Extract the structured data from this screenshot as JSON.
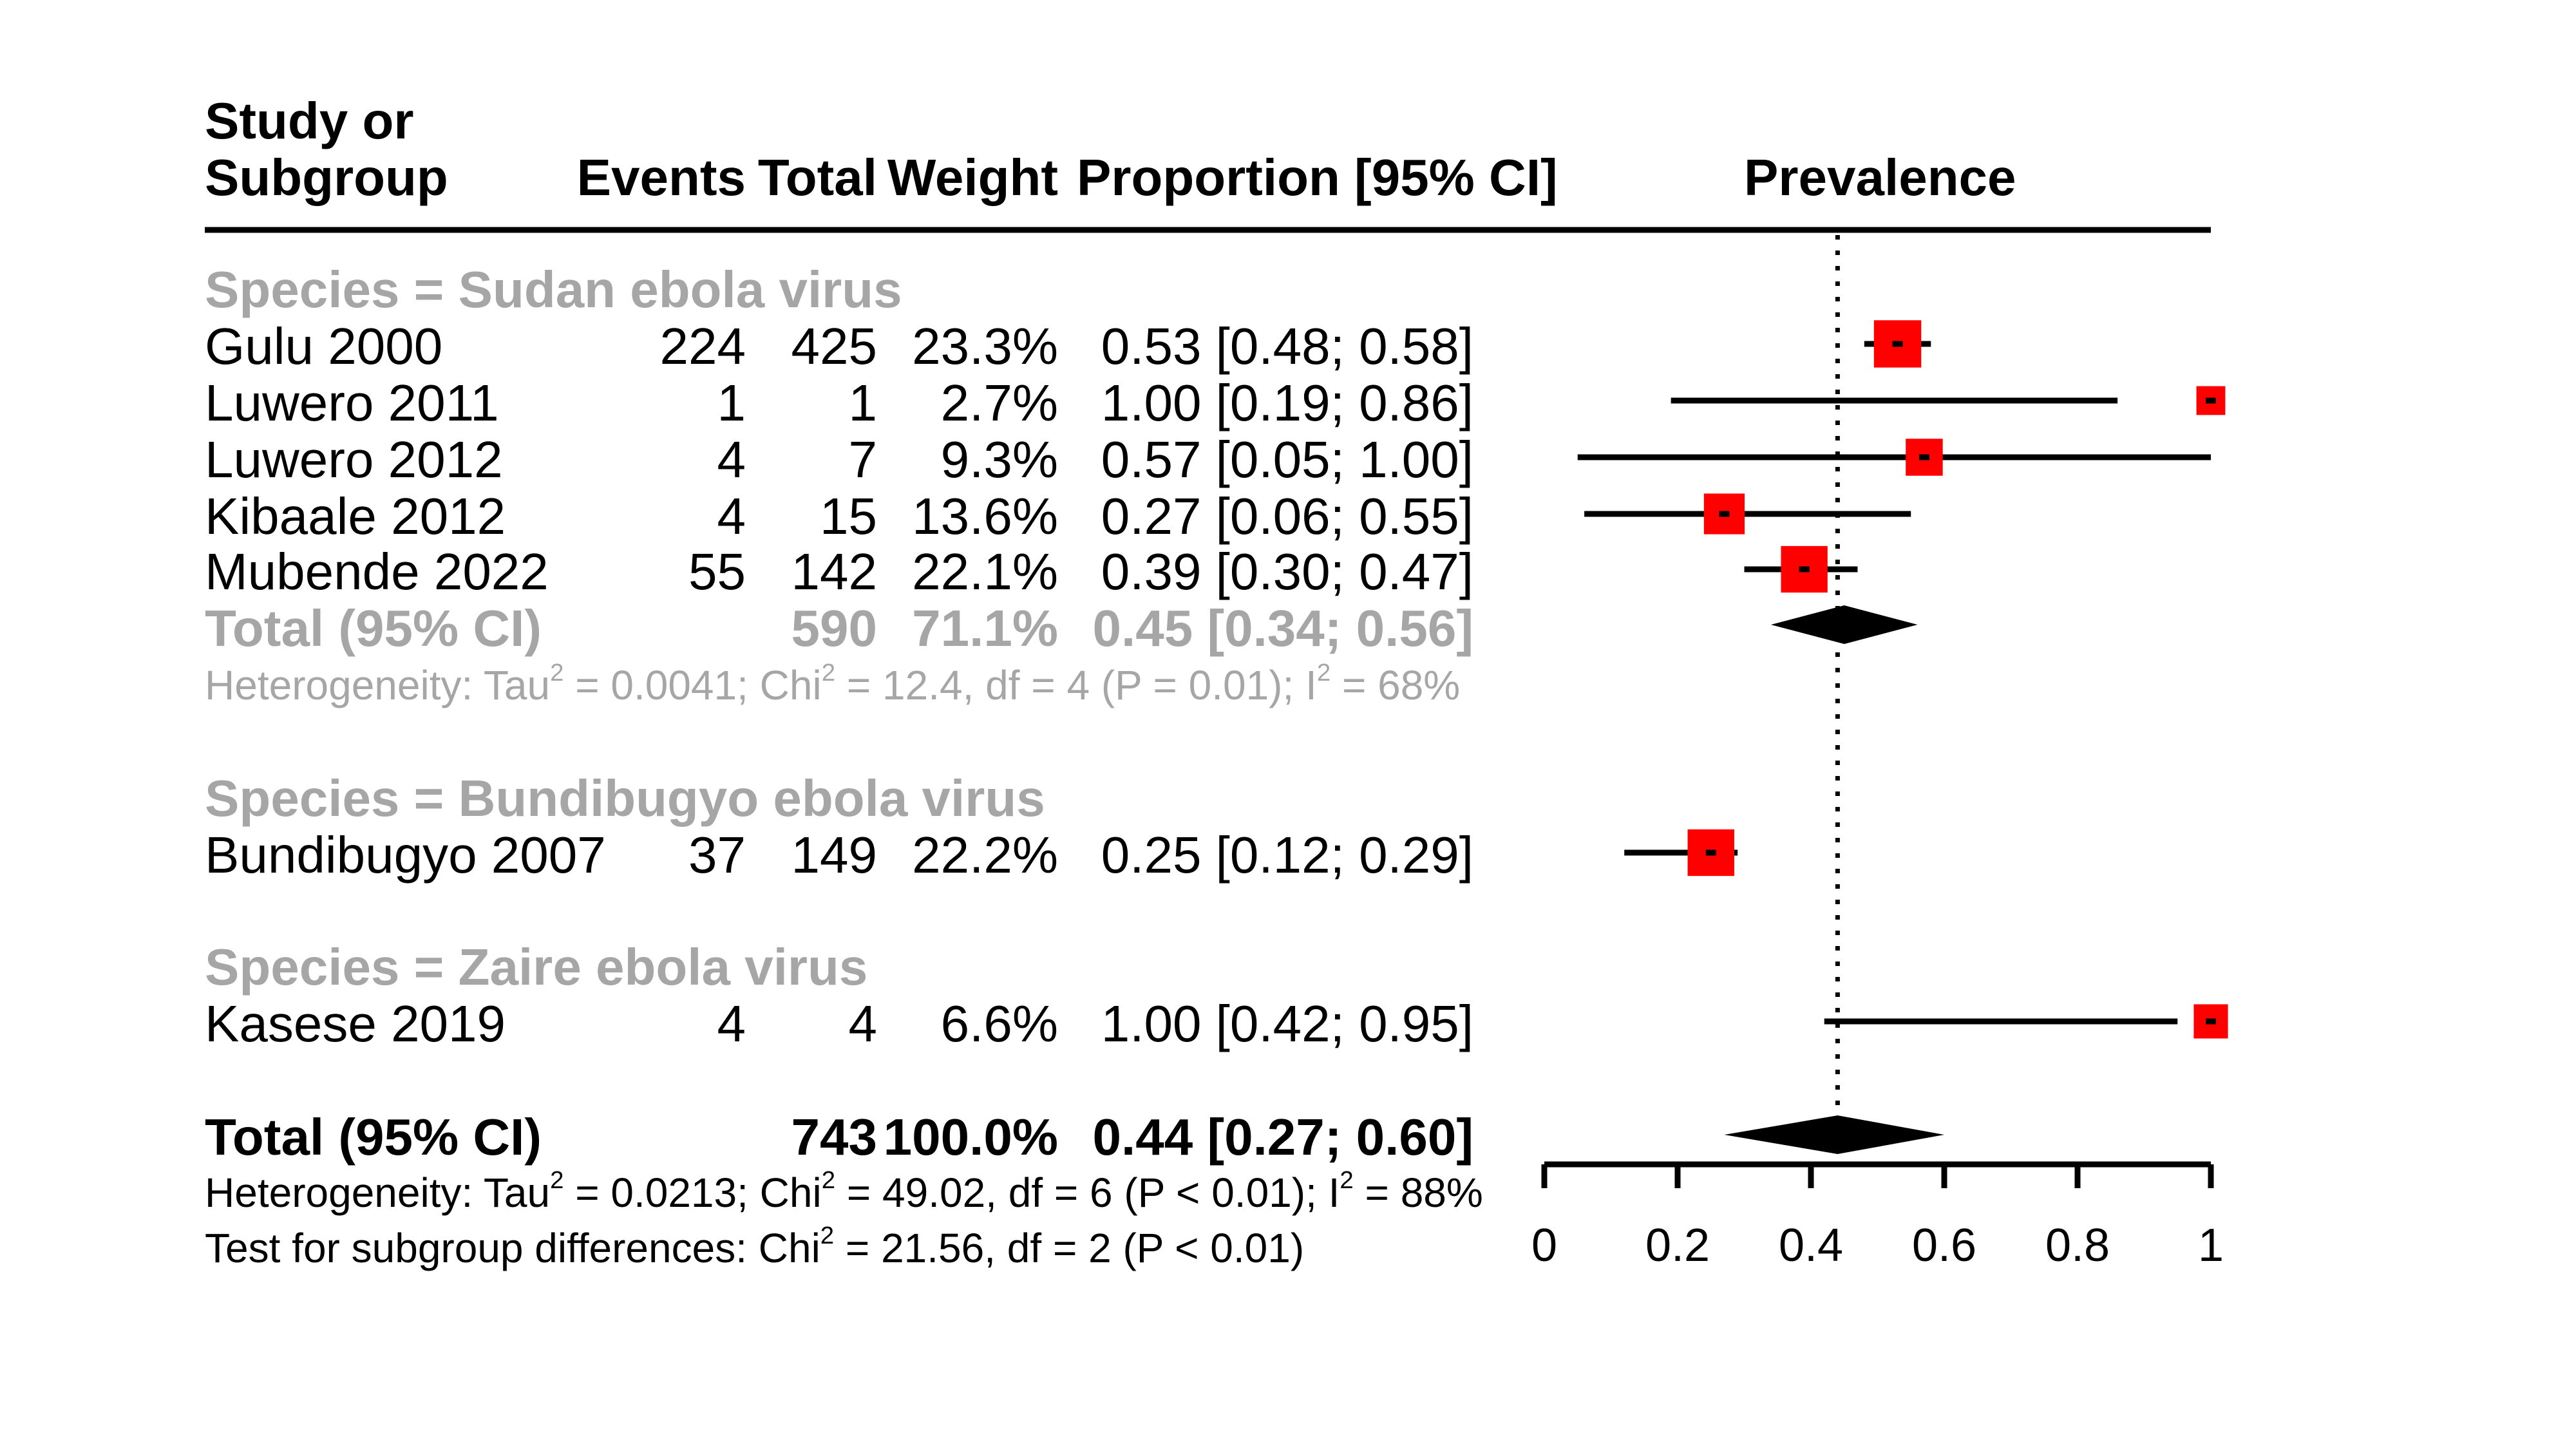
{
  "header": {
    "study_line1": "Study or",
    "study_line2": "Subgroup",
    "events": "Events",
    "total": "Total",
    "weight": "Weight",
    "proportion": "Proportion [95% CI]",
    "plot_title": "Prevalence"
  },
  "subgroups": [
    {
      "label": "Species = Sudan ebola virus",
      "studies": [
        {
          "study": "Gulu 2000",
          "events": "224",
          "total": "425",
          "weight": "23.3%",
          "ci_text": "0.53 [0.48; 0.58]"
        },
        {
          "study": "Luwero 2011",
          "events": "1",
          "total": "1",
          "weight": "2.7%",
          "ci_text": "1.00 [0.19; 0.86]"
        },
        {
          "study": "Luwero 2012",
          "events": "4",
          "total": "7",
          "weight": "9.3%",
          "ci_text": "0.57 [0.05; 1.00]"
        },
        {
          "study": "Kibaale 2012",
          "events": "4",
          "total": "15",
          "weight": "13.6%",
          "ci_text": "0.27 [0.06; 0.55]"
        },
        {
          "study": "Mubende 2022",
          "events": "55",
          "total": "142",
          "weight": "22.1%",
          "ci_text": "0.39 [0.30; 0.47]"
        }
      ],
      "total": {
        "label": "Total (95% CI)",
        "total": "590",
        "weight": "71.1%",
        "ci_text": "0.45 [0.34; 0.56]"
      },
      "heterogeneity": {
        "p1": "Heterogeneity: Tau",
        "s1": "2",
        "p2": " = 0.0041; Chi",
        "s2": "2",
        "p3": " = 12.4, df = 4 (P = 0.01); I",
        "s3": "2",
        "p4": " = 68%"
      }
    },
    {
      "label": "Species = Bundibugyo ebola virus",
      "studies": [
        {
          "study": "Bundibugyo 2007",
          "events": "37",
          "total": "149",
          "weight": "22.2%",
          "ci_text": "0.25 [0.12; 0.29]"
        }
      ]
    },
    {
      "label": "Species = Zaire ebola virus",
      "studies": [
        {
          "study": "Kasese 2019",
          "events": "4",
          "total": "4",
          "weight": "6.6%",
          "ci_text": "1.00 [0.42; 0.95]"
        }
      ]
    }
  ],
  "overall": {
    "label": "Total (95% CI)",
    "total": "743",
    "weight": "100.0%",
    "ci_text": "0.44 [0.27; 0.60]",
    "heterogeneity": {
      "p1": "Heterogeneity: Tau",
      "s1": "2",
      "p2": " = 0.0213; Chi",
      "s2": "2",
      "p3": " = 49.02, df = 6 (P < 0.01); I",
      "s3": "2",
      "p4": " = 88%"
    },
    "subgroup_test": {
      "p1": "Test for subgroup differences: Chi",
      "s1": "2",
      "p2": " = 21.56, df = 2 (P < 0.01)"
    }
  },
  "colors": {
    "square": "#ff0000",
    "diamond": "#000000",
    "muted_text": "#a6a6a6"
  },
  "chart_data": {
    "type": "forest",
    "title": "Prevalence",
    "xlim": [
      0,
      1
    ],
    "xticks": [
      "0",
      "0.2",
      "0.4",
      "0.6",
      "0.8",
      "1"
    ],
    "reference_line": 0.44,
    "studies": [
      {
        "study": "Gulu 2000",
        "est": 0.53,
        "lo": 0.48,
        "hi": 0.58,
        "weight": 23.3
      },
      {
        "study": "Luwero 2011",
        "est": 1.0,
        "lo": 0.19,
        "hi": 0.86,
        "weight": 2.7
      },
      {
        "study": "Luwero 2012",
        "est": 0.57,
        "lo": 0.05,
        "hi": 1.0,
        "weight": 9.3
      },
      {
        "study": "Kibaale 2012",
        "est": 0.27,
        "lo": 0.06,
        "hi": 0.55,
        "weight": 13.6
      },
      {
        "study": "Mubende 2022",
        "est": 0.39,
        "lo": 0.3,
        "hi": 0.47,
        "weight": 22.1
      },
      {
        "study": "Bundibugyo 2007",
        "est": 0.25,
        "lo": 0.12,
        "hi": 0.29,
        "weight": 22.2
      },
      {
        "study": "Kasese 2019",
        "est": 1.0,
        "lo": 0.42,
        "hi": 0.95,
        "weight": 6.6
      }
    ],
    "pooled": [
      {
        "label": "Sudan ebola virus subgroup",
        "est": 0.45,
        "lo": 0.34,
        "hi": 0.56
      },
      {
        "label": "Overall",
        "est": 0.44,
        "lo": 0.27,
        "hi": 0.6
      }
    ]
  }
}
